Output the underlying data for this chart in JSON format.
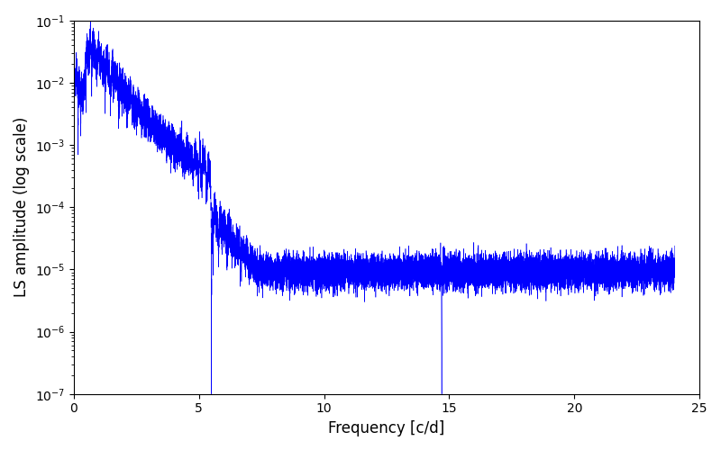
{
  "xlabel": "Frequency [c/d]",
  "ylabel": "LS amplitude (log scale)",
  "line_color": "#0000ff",
  "xlim": [
    0,
    25
  ],
  "ylim_log": [
    -7,
    -1
  ],
  "freq_max": 24.0,
  "n_points": 20000,
  "background_color": "#ffffff",
  "seed": 12345,
  "linewidth": 0.4
}
